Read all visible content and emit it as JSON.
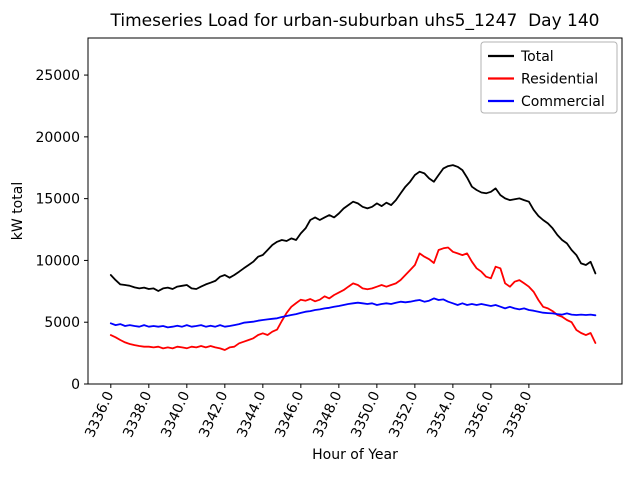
{
  "chart_data": {
    "type": "line",
    "title": "Timeseries Load for urban-suburban uhs5_1247  Day 140",
    "xlabel": "Hour of Year",
    "ylabel": "kW total",
    "grid": false,
    "legend_position": "upper right",
    "xlim": [
      3334.8,
      3362.9
    ],
    "ylim": [
      0,
      28000
    ],
    "x_tick_values": [
      3336,
      3338,
      3340,
      3342,
      3344,
      3346,
      3348,
      3350,
      3352,
      3354,
      3356,
      3358
    ],
    "x_tick_labels": [
      "3336.0",
      "3338.0",
      "3340.0",
      "3342.0",
      "3344.0",
      "3346.0",
      "3348.0",
      "3350.0",
      "3352.0",
      "3354.0",
      "3356.0",
      "3358.0"
    ],
    "y_ticks": [
      0,
      5000,
      10000,
      15000,
      20000,
      25000
    ],
    "x_start": 3336.0,
    "x_step": 0.25,
    "series": [
      {
        "name": "Total",
        "color": "#000000",
        "values": [
          8820,
          8410,
          8060,
          8010,
          7950,
          7820,
          7740,
          7800,
          7690,
          7740,
          7530,
          7740,
          7800,
          7690,
          7880,
          7950,
          8010,
          7740,
          7690,
          7880,
          8060,
          8200,
          8340,
          8680,
          8820,
          8600,
          8820,
          9090,
          9360,
          9630,
          9900,
          10300,
          10440,
          10840,
          11245,
          11510,
          11650,
          11570,
          11785,
          11650,
          12190,
          12600,
          13270,
          13485,
          13270,
          13485,
          13670,
          13485,
          13800,
          14200,
          14480,
          14750,
          14615,
          14343,
          14210,
          14343,
          14615,
          14400,
          14670,
          14480,
          14885,
          15425,
          15965,
          16370,
          16910,
          17180,
          17045,
          16640,
          16370,
          16910,
          17450,
          17635,
          17715,
          17580,
          17310,
          16700,
          15965,
          15700,
          15500,
          15430,
          15550,
          15830,
          15290,
          15020,
          14885,
          14950,
          15020,
          14885,
          14750,
          14100,
          13600,
          13270,
          13000,
          12600,
          12055,
          11650,
          11380,
          10840,
          10435,
          9760,
          9630,
          9890,
          8950
        ]
      },
      {
        "name": "Residential",
        "color": "#ff0000",
        "values": [
          3960,
          3780,
          3560,
          3370,
          3240,
          3150,
          3075,
          3020,
          3020,
          2965,
          3020,
          2880,
          2965,
          2880,
          3020,
          2965,
          2885,
          3020,
          2965,
          3075,
          2965,
          3075,
          2965,
          2880,
          2750,
          2965,
          3020,
          3290,
          3420,
          3560,
          3700,
          3965,
          4100,
          3965,
          4230,
          4400,
          5100,
          5750,
          6250,
          6550,
          6820,
          6740,
          6875,
          6690,
          6820,
          7100,
          6930,
          7200,
          7400,
          7600,
          7870,
          8145,
          8010,
          7740,
          7660,
          7740,
          7870,
          8010,
          7870,
          8010,
          8145,
          8415,
          8820,
          9220,
          9630,
          10570,
          10300,
          10100,
          9790,
          10840,
          10980,
          11050,
          10700,
          10570,
          10435,
          10570,
          9900,
          9360,
          9090,
          8680,
          8550,
          9490,
          9360,
          8150,
          7870,
          8280,
          8410,
          8150,
          7870,
          7470,
          6800,
          6250,
          6120,
          5900,
          5580,
          5440,
          5180,
          5000,
          4370,
          4130,
          3960,
          4130,
          3320
        ]
      },
      {
        "name": "Commercial",
        "color": "#0000ff",
        "values": [
          4910,
          4770,
          4850,
          4690,
          4770,
          4690,
          4640,
          4770,
          4640,
          4690,
          4640,
          4690,
          4580,
          4640,
          4720,
          4640,
          4770,
          4640,
          4690,
          4770,
          4640,
          4720,
          4640,
          4770,
          4640,
          4690,
          4770,
          4850,
          4960,
          5000,
          5040,
          5120,
          5180,
          5230,
          5280,
          5320,
          5420,
          5500,
          5580,
          5660,
          5750,
          5850,
          5900,
          5990,
          6040,
          6120,
          6170,
          6250,
          6310,
          6390,
          6470,
          6530,
          6580,
          6530,
          6470,
          6530,
          6390,
          6470,
          6530,
          6470,
          6580,
          6660,
          6610,
          6660,
          6740,
          6795,
          6660,
          6740,
          6930,
          6795,
          6850,
          6660,
          6530,
          6390,
          6530,
          6390,
          6470,
          6390,
          6470,
          6390,
          6310,
          6390,
          6253,
          6120,
          6250,
          6120,
          6040,
          6120,
          5990,
          5930,
          5850,
          5770,
          5740,
          5715,
          5660,
          5620,
          5715,
          5620,
          5580,
          5620,
          5580,
          5620,
          5560
        ]
      }
    ]
  }
}
